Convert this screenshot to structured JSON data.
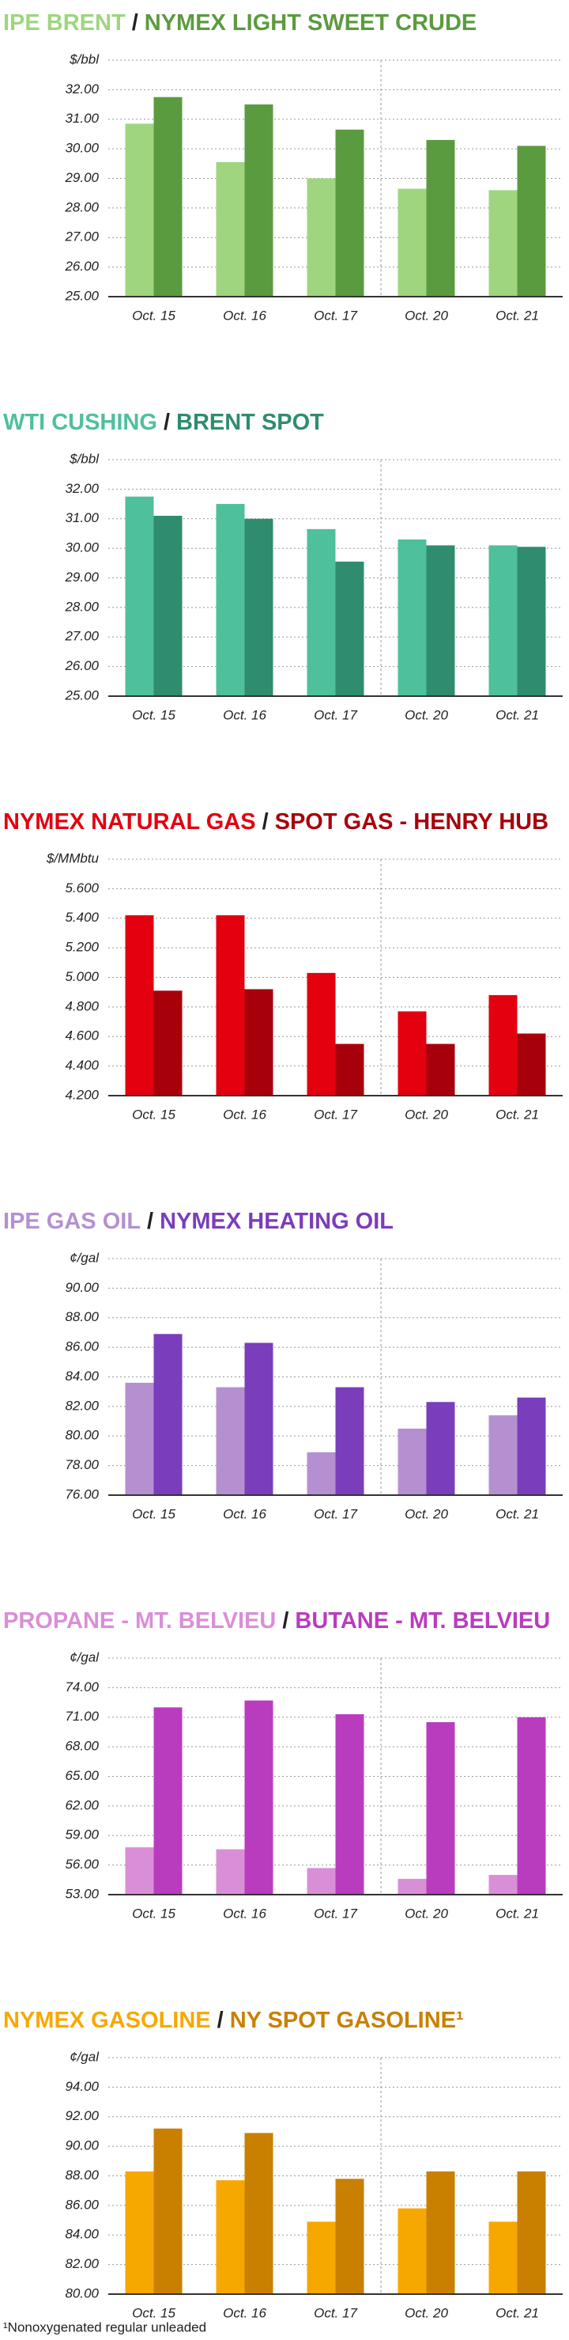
{
  "chart_data": [
    {
      "type": "bar",
      "separator": "/",
      "unit": "$/bbl",
      "categories": [
        "Oct. 15",
        "Oct. 16",
        "Oct. 17",
        "Oct. 20",
        "Oct. 21"
      ],
      "series": [
        {
          "name": "IPE BRENT",
          "color": "#9fd57f",
          "values": [
            30.85,
            29.55,
            29.0,
            28.65,
            28.6
          ]
        },
        {
          "name": "NYMEX LIGHT SWEET CRUDE",
          "color": "#5b9b3f",
          "values": [
            31.75,
            31.5,
            30.65,
            30.3,
            30.1
          ]
        }
      ],
      "ylim": [
        25,
        33
      ],
      "yticks": [
        {
          "value": 25,
          "label": "25.00"
        },
        {
          "value": 26,
          "label": "26.00"
        },
        {
          "value": 27,
          "label": "27.00"
        },
        {
          "value": 28,
          "label": "28.00"
        },
        {
          "value": 29,
          "label": "29.00"
        },
        {
          "value": 30,
          "label": "30.00"
        },
        {
          "value": 31,
          "label": "31.00"
        },
        {
          "value": 32,
          "label": "32.00"
        }
      ],
      "grid": true
    },
    {
      "type": "bar",
      "separator": "/",
      "unit": "$/bbl",
      "categories": [
        "Oct. 15",
        "Oct. 16",
        "Oct. 17",
        "Oct. 20",
        "Oct. 21"
      ],
      "series": [
        {
          "name": "WTI CUSHING",
          "color": "#4ec09c",
          "values": [
            31.75,
            31.5,
            30.65,
            30.3,
            30.1
          ]
        },
        {
          "name": "BRENT SPOT",
          "color": "#2f8c6f",
          "values": [
            31.1,
            31.0,
            29.55,
            30.1,
            30.05
          ]
        }
      ],
      "ylim": [
        25,
        33
      ],
      "yticks": [
        {
          "value": 25,
          "label": "25.00"
        },
        {
          "value": 26,
          "label": "26.00"
        },
        {
          "value": 27,
          "label": "27.00"
        },
        {
          "value": 28,
          "label": "28.00"
        },
        {
          "value": 29,
          "label": "29.00"
        },
        {
          "value": 30,
          "label": "30.00"
        },
        {
          "value": 31,
          "label": "31.00"
        },
        {
          "value": 32,
          "label": "32.00"
        }
      ],
      "grid": true
    },
    {
      "type": "bar",
      "separator": "/",
      "unit": "$/MMbtu",
      "categories": [
        "Oct. 15",
        "Oct. 16",
        "Oct. 17",
        "Oct. 20",
        "Oct. 21"
      ],
      "series": [
        {
          "name": "NYMEX NATURAL GAS",
          "color": "#e3000f",
          "values": [
            5.42,
            5.42,
            5.03,
            4.77,
            4.88
          ]
        },
        {
          "name": "SPOT GAS - HENRY HUB",
          "color": "#a8000b",
          "values": [
            4.91,
            4.92,
            4.55,
            4.55,
            4.62
          ]
        }
      ],
      "ylim": [
        4.2,
        5.8
      ],
      "yticks": [
        {
          "value": 4.2,
          "label": "4.200"
        },
        {
          "value": 4.4,
          "label": "4.400"
        },
        {
          "value": 4.6,
          "label": "4.600"
        },
        {
          "value": 4.8,
          "label": "4.800"
        },
        {
          "value": 5.0,
          "label": "5.000"
        },
        {
          "value": 5.2,
          "label": "5.200"
        },
        {
          "value": 5.4,
          "label": "5.400"
        },
        {
          "value": 5.6,
          "label": "5.600"
        }
      ],
      "grid": true
    },
    {
      "type": "bar",
      "separator": "/",
      "unit": "¢/gal",
      "categories": [
        "Oct. 15",
        "Oct. 16",
        "Oct. 17",
        "Oct. 20",
        "Oct. 21"
      ],
      "series": [
        {
          "name": "IPE GAS OIL",
          "color": "#b490d1",
          "values": [
            83.6,
            83.3,
            78.9,
            80.5,
            81.4
          ]
        },
        {
          "name": "NYMEX HEATING OIL",
          "color": "#7a3dbb",
          "values": [
            86.9,
            86.3,
            83.3,
            82.3,
            82.6
          ]
        }
      ],
      "ylim": [
        76,
        92
      ],
      "yticks": [
        {
          "value": 76,
          "label": "76.00"
        },
        {
          "value": 78,
          "label": "78.00"
        },
        {
          "value": 80,
          "label": "80.00"
        },
        {
          "value": 82,
          "label": "82.00"
        },
        {
          "value": 84,
          "label": "84.00"
        },
        {
          "value": 86,
          "label": "86.00"
        },
        {
          "value": 88,
          "label": "88.00"
        },
        {
          "value": 90,
          "label": "90.00"
        }
      ],
      "grid": true
    },
    {
      "type": "bar",
      "separator": "/",
      "unit": "¢/gal",
      "categories": [
        "Oct. 15",
        "Oct. 16",
        "Oct. 17",
        "Oct. 20",
        "Oct. 21"
      ],
      "series": [
        {
          "name": "PROPANE - MT. BELVIEU",
          "color": "#d98fd7",
          "values": [
            57.8,
            57.6,
            55.7,
            54.6,
            55.0
          ]
        },
        {
          "name": "BUTANE - MT. BELVIEU",
          "color": "#b93cbf",
          "values": [
            72.0,
            72.7,
            71.3,
            70.5,
            71.0
          ]
        }
      ],
      "ylim": [
        53,
        77
      ],
      "yticks": [
        {
          "value": 53,
          "label": "53.00"
        },
        {
          "value": 56,
          "label": "56.00"
        },
        {
          "value": 59,
          "label": "59.00"
        },
        {
          "value": 62,
          "label": "62.00"
        },
        {
          "value": 65,
          "label": "65.00"
        },
        {
          "value": 68,
          "label": "68.00"
        },
        {
          "value": 71,
          "label": "71.00"
        },
        {
          "value": 74,
          "label": "74.00"
        }
      ],
      "grid": true
    },
    {
      "type": "bar",
      "separator": "/",
      "unit": "¢/gal",
      "categories": [
        "Oct. 15",
        "Oct. 16",
        "Oct. 17",
        "Oct. 20",
        "Oct. 21"
      ],
      "series": [
        {
          "name": "NYMEX GASOLINE",
          "color": "#f7a800",
          "values": [
            88.3,
            87.7,
            84.9,
            85.8,
            84.9
          ]
        },
        {
          "name": "NY SPOT GASOLINE¹",
          "color": "#c98000",
          "values": [
            91.2,
            90.9,
            87.8,
            88.3,
            88.3
          ]
        }
      ],
      "ylim": [
        80,
        96
      ],
      "yticks": [
        {
          "value": 80,
          "label": "80.00"
        },
        {
          "value": 82,
          "label": "82.00"
        },
        {
          "value": 84,
          "label": "84.00"
        },
        {
          "value": 86,
          "label": "86.00"
        },
        {
          "value": 88,
          "label": "88.00"
        },
        {
          "value": 90,
          "label": "90.00"
        },
        {
          "value": 92,
          "label": "92.00"
        },
        {
          "value": 94,
          "label": "94.00"
        }
      ],
      "grid": true,
      "note": "¹Nonoxygenated regular unleaded"
    }
  ]
}
